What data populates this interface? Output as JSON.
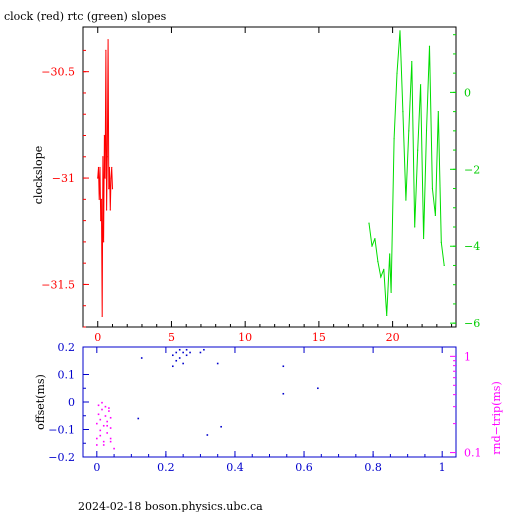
{
  "title": "clock (red) rtc (green) slopes",
  "footer": "2024-02-18  boson.physics.ubc.ca",
  "colors": {
    "red": "#ff0000",
    "green": "#00dd00",
    "blue": "#0000cc",
    "magenta": "#ff00ff",
    "black": "#000000"
  },
  "chart_data": [
    {
      "type": "line",
      "title": "clock (red) rtc (green) slopes",
      "xlabel": "",
      "ylabel": "clockslope",
      "xlim": [
        -1,
        24.3
      ],
      "ylim_left": [
        -31.7,
        -30.29
      ],
      "ylim_right": [
        -6.1,
        1.7
      ],
      "x_ticks": [
        0,
        5,
        10,
        15,
        20
      ],
      "y_ticks_left": [
        -30.5,
        -31,
        -31.5
      ],
      "y_ticks_right": [
        0,
        -2,
        -4,
        -6
      ],
      "series": [
        {
          "name": "clock",
          "axis": "left",
          "color": "#ff0000",
          "x": [
            0.0,
            0.05,
            0.1,
            0.15,
            0.2,
            0.25,
            0.3,
            0.35,
            0.4,
            0.45,
            0.5,
            0.55,
            0.6,
            0.65,
            0.7,
            0.75,
            0.8,
            0.85,
            0.9,
            0.95,
            1.0
          ],
          "values": [
            -31.0,
            -30.95,
            -31.1,
            -30.95,
            -31.2,
            -31.1,
            -31.65,
            -30.9,
            -31.3,
            -30.8,
            -31.0,
            -30.4,
            -31.15,
            -30.9,
            -30.35,
            -31.05,
            -30.95,
            -31.15,
            -31.0,
            -30.95,
            -31.05
          ]
        },
        {
          "name": "rtc",
          "axis": "right",
          "color": "#00dd00",
          "x": [
            18.4,
            18.6,
            18.8,
            19.0,
            19.2,
            19.4,
            19.6,
            19.8,
            19.9,
            20.1,
            20.3,
            20.5,
            20.7,
            20.9,
            21.1,
            21.3,
            21.5,
            21.7,
            21.9,
            22.1,
            22.3,
            22.5,
            22.7,
            22.9,
            23.1,
            23.3,
            23.5
          ],
          "values": [
            -3.4,
            -4.0,
            -3.8,
            -4.4,
            -4.8,
            -4.6,
            -5.8,
            -4.2,
            -5.2,
            -1.2,
            0.5,
            1.6,
            -0.5,
            -2.8,
            -1.0,
            0.8,
            -3.5,
            -1.5,
            0.2,
            -3.8,
            -1.0,
            1.2,
            -2.5,
            -3.2,
            -0.5,
            -3.9,
            -4.5
          ]
        }
      ]
    },
    {
      "type": "scatter",
      "xlabel": "",
      "ylabel": "offset(ms)",
      "ylabel_right": "rnd−trip(ms)",
      "xlim": [
        -0.04,
        1.04
      ],
      "ylim_left": [
        -0.2,
        0.2
      ],
      "ylim_right_log": [
        0.09,
        1.25
      ],
      "x_ticks": [
        0,
        0.2,
        0.4,
        0.6,
        0.8,
        1
      ],
      "y_ticks_left": [
        0.2,
        0.1,
        0,
        -0.1,
        -0.2
      ],
      "y_ticks_right": [
        1,
        0.1
      ],
      "series": [
        {
          "name": "offset",
          "axis": "left",
          "color": "#0000cc",
          "x": [
            0.13,
            0.22,
            0.22,
            0.23,
            0.23,
            0.24,
            0.24,
            0.25,
            0.25,
            0.26,
            0.26,
            0.27,
            0.3,
            0.31,
            0.35,
            0.32,
            0.54,
            0.54,
            0.64,
            0.36,
            0.12
          ],
          "values": [
            0.16,
            0.13,
            0.17,
            0.18,
            0.15,
            0.19,
            0.16,
            0.18,
            0.14,
            0.17,
            0.19,
            0.18,
            0.18,
            0.19,
            0.14,
            -0.12,
            0.13,
            0.03,
            0.05,
            -0.09,
            -0.06
          ]
        },
        {
          "name": "rnd-trip",
          "axis": "right",
          "color": "#ff00ff",
          "x": [
            0.0,
            0.005,
            0.01,
            0.015,
            0.02,
            0.025,
            0.03,
            0.035,
            0.04,
            0.0,
            0.01,
            0.02,
            0.03,
            0.04,
            0.005,
            0.015,
            0.025,
            0.035,
            0.04,
            0.0,
            0.02,
            0.04,
            0.01,
            0.03,
            0.05
          ],
          "values": [
            0.2,
            0.25,
            0.22,
            0.28,
            0.19,
            0.24,
            0.21,
            0.27,
            0.23,
            0.14,
            0.15,
            0.13,
            0.16,
            0.14,
            0.31,
            0.33,
            0.3,
            0.29,
            0.18,
            0.12,
            0.12,
            0.13,
            0.17,
            0.19,
            0.11
          ]
        }
      ]
    }
  ]
}
